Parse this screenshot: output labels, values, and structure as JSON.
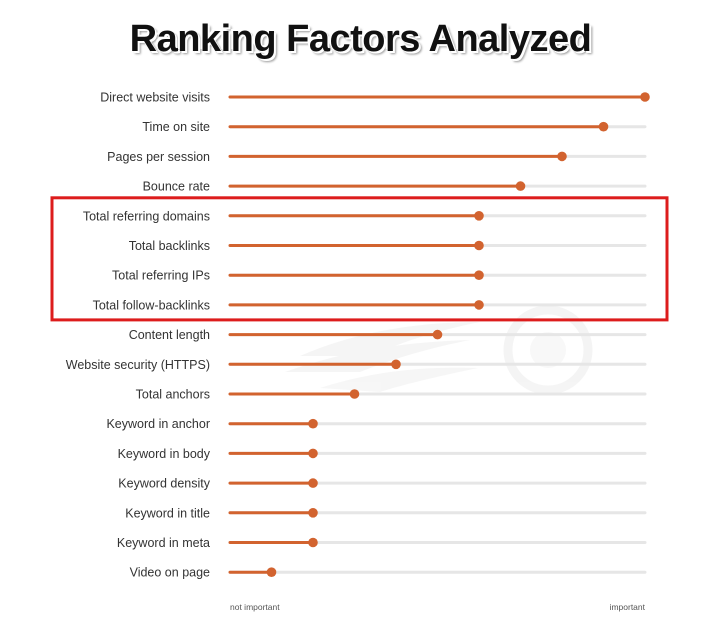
{
  "colors": {
    "accent": "#d2632f",
    "track": "#e6e6e6",
    "highlight": "#dd1c1c",
    "watermark": "#f1f1f1"
  },
  "watermark": "semrush-logo",
  "chart_data": {
    "type": "lollipop",
    "title": "Ranking Factors Analyzed",
    "orientation": "horizontal",
    "xlim": [
      0,
      100
    ],
    "axis_labels": {
      "min": "not important",
      "max": "important"
    },
    "categories": [
      "Direct website visits",
      "Time on site",
      "Pages per session",
      "Bounce rate",
      "Total referring domains",
      "Total backlinks",
      "Total referring IPs",
      "Total follow-backlinks",
      "Content length",
      "Website security (HTTPS)",
      "Total anchors",
      "Keyword in anchor",
      "Keyword in body",
      "Keyword density",
      "Keyword in title",
      "Keyword in meta",
      "Video on page"
    ],
    "values": [
      100,
      90,
      80,
      70,
      60,
      60,
      60,
      60,
      50,
      40,
      30,
      20,
      20,
      20,
      20,
      20,
      10
    ],
    "highlighted": [
      "Total referring domains",
      "Total backlinks",
      "Total referring IPs",
      "Total follow-backlinks"
    ]
  }
}
